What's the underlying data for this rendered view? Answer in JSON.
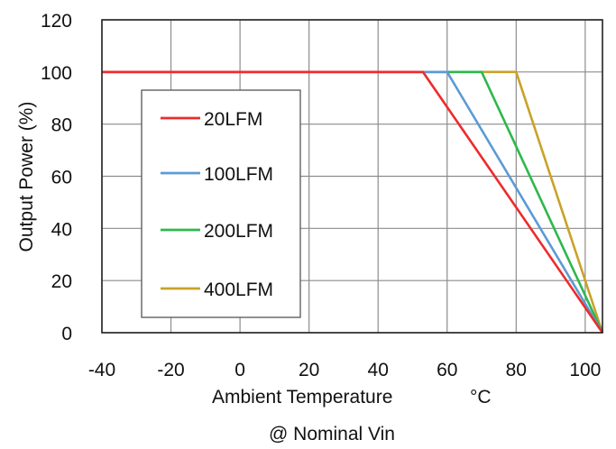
{
  "chart_data": {
    "type": "line",
    "title": "",
    "subtitle": "@ Nominal Vin",
    "xlabel": "Ambient Temperature",
    "xunit": "°C",
    "ylabel": "Output Power (%)",
    "xlim": [
      -40,
      105
    ],
    "ylim": [
      0,
      120
    ],
    "xticks": [
      "-40",
      "-20",
      "0",
      "20",
      "40",
      "60",
      "80",
      "100"
    ],
    "yticks": [
      "0",
      "20",
      "40",
      "60",
      "80",
      "100",
      "120"
    ],
    "grid": true,
    "legend": "inside-left",
    "series": [
      {
        "name": "20LFM",
        "color": "#ee2b2b",
        "x": [
          -40,
          53,
          105
        ],
        "y": [
          100,
          100,
          0
        ]
      },
      {
        "name": "100LFM",
        "color": "#5b9bd5",
        "x": [
          -40,
          60,
          105
        ],
        "y": [
          100,
          100,
          0
        ]
      },
      {
        "name": "200LFM",
        "color": "#2db84d",
        "x": [
          -40,
          70,
          105
        ],
        "y": [
          100,
          100,
          0
        ]
      },
      {
        "name": "400LFM",
        "color": "#c9a227",
        "x": [
          -40,
          80,
          105
        ],
        "y": [
          100,
          100,
          0
        ]
      }
    ]
  }
}
